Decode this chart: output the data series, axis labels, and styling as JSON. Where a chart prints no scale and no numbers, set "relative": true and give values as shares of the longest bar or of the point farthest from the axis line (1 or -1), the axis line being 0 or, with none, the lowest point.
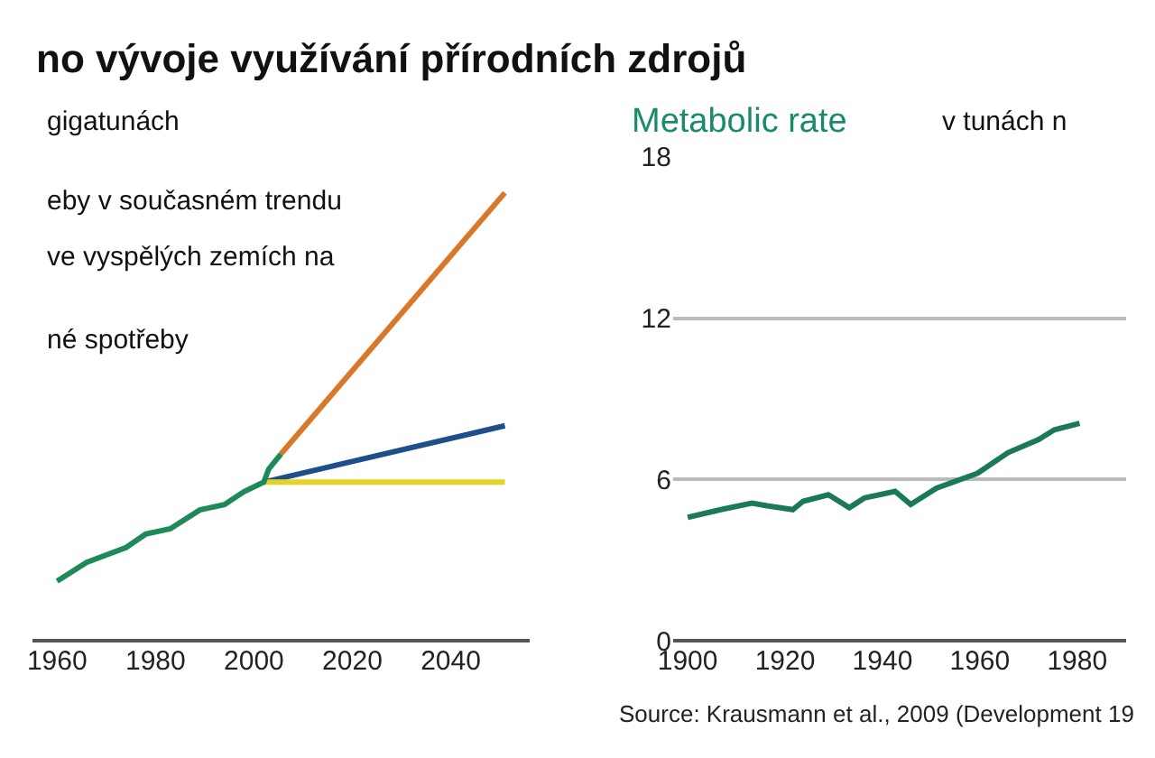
{
  "chart_data": [
    {
      "type": "line",
      "title": "no vývoje využívání přírodních zdrojů",
      "subtitle": "gigatunách",
      "relative": true,
      "xlim": [
        1955,
        2056
      ],
      "xticks": [
        1960,
        1980,
        2000,
        2020,
        2040
      ],
      "annotations": [
        "eby v současném trendu",
        "ve vyspělých zemích na",
        "né spotřeby"
      ],
      "series": [
        {
          "color": "#d9782a",
          "x": [
            2005.5,
            2051
          ],
          "values": [
            0.417,
            1.0
          ]
        },
        {
          "color": "#1f4e8c",
          "x": [
            2002,
            2051
          ],
          "values": [
            0.354,
            0.48
          ]
        },
        {
          "color": "#e3d323",
          "x": [
            2002,
            2051
          ],
          "values": [
            0.354,
            0.354
          ]
        },
        {
          "color": "#1e8a5a",
          "x": [
            1960,
            1966,
            1974,
            1978,
            1983,
            1989,
            1994,
            1998,
            2002,
            2003,
            2005.5
          ],
          "values": [
            0.133,
            0.175,
            0.208,
            0.238,
            0.25,
            0.292,
            0.304,
            0.333,
            0.354,
            0.383,
            0.417
          ]
        }
      ]
    },
    {
      "type": "line",
      "title": "Metabolic rate",
      "subtitle": "v tunách n",
      "xlim": [
        1897,
        1990
      ],
      "xticks": [
        1900,
        1920,
        1940,
        1960,
        1980
      ],
      "ylim": [
        0,
        18
      ],
      "yticks": [
        0,
        6,
        12,
        18
      ],
      "grid": "y",
      "annotations": [
        "Source: Krausmann et al., 2009 (Development 19"
      ],
      "series": [
        {
          "color": "#1b7a55",
          "x": [
            1900,
            1906.8,
            1913.2,
            1916.3,
            1921.6,
            1923.7,
            1928.9,
            1933.2,
            1936.3,
            1942.6,
            1945.8,
            1951.1,
            1959.5,
            1965.8,
            1972.1,
            1975.3,
            1980.5
          ],
          "values": [
            4.59,
            4.88,
            5.12,
            5.02,
            4.88,
            5.19,
            5.43,
            4.95,
            5.31,
            5.56,
            5.07,
            5.68,
            6.23,
            7.0,
            7.49,
            7.85,
            8.09
          ]
        }
      ]
    }
  ]
}
